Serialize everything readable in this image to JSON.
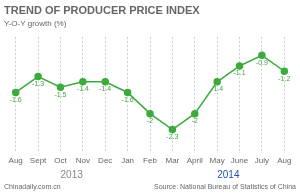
{
  "chart_data": {
    "type": "line",
    "title": "TREND OF PRODUCER PRICE INDEX",
    "subtitle": "Y-O-Y growth (%)",
    "categories": [
      "Aug",
      "Sept",
      "Oct",
      "Nov",
      "Dec",
      "Jan",
      "Feb",
      "Mar",
      "April",
      "May",
      "June",
      "July",
      "Aug"
    ],
    "values": [
      -1.6,
      -1.3,
      -1.5,
      -1.4,
      -1.4,
      -1.6,
      -2.0,
      -2.3,
      -2.0,
      -1.4,
      -1.1,
      -0.9,
      -1.2
    ],
    "value_labels": [
      "-1.6",
      "-1.3",
      "-1.5",
      "-1.4",
      "-1.4",
      "-1.6",
      "-2",
      "-2.3",
      "-2",
      "-1.4",
      "-1.1",
      "-0.9",
      "-1.2"
    ],
    "color": "#3daa3d",
    "marker": "circle",
    "ylim": [
      -2.75,
      -0.55
    ],
    "grid": true,
    "data_labels": true,
    "tick_labels": "x",
    "annotations": [
      {
        "text": "2013",
        "x": 2.5,
        "color": "#888888"
      },
      {
        "text": "2014",
        "x": 9.5,
        "color": "#2255aa"
      }
    ],
    "footer": [
      "Chinadaily.com.cn",
      "Source: National Bureau of Statistics of China"
    ]
  }
}
